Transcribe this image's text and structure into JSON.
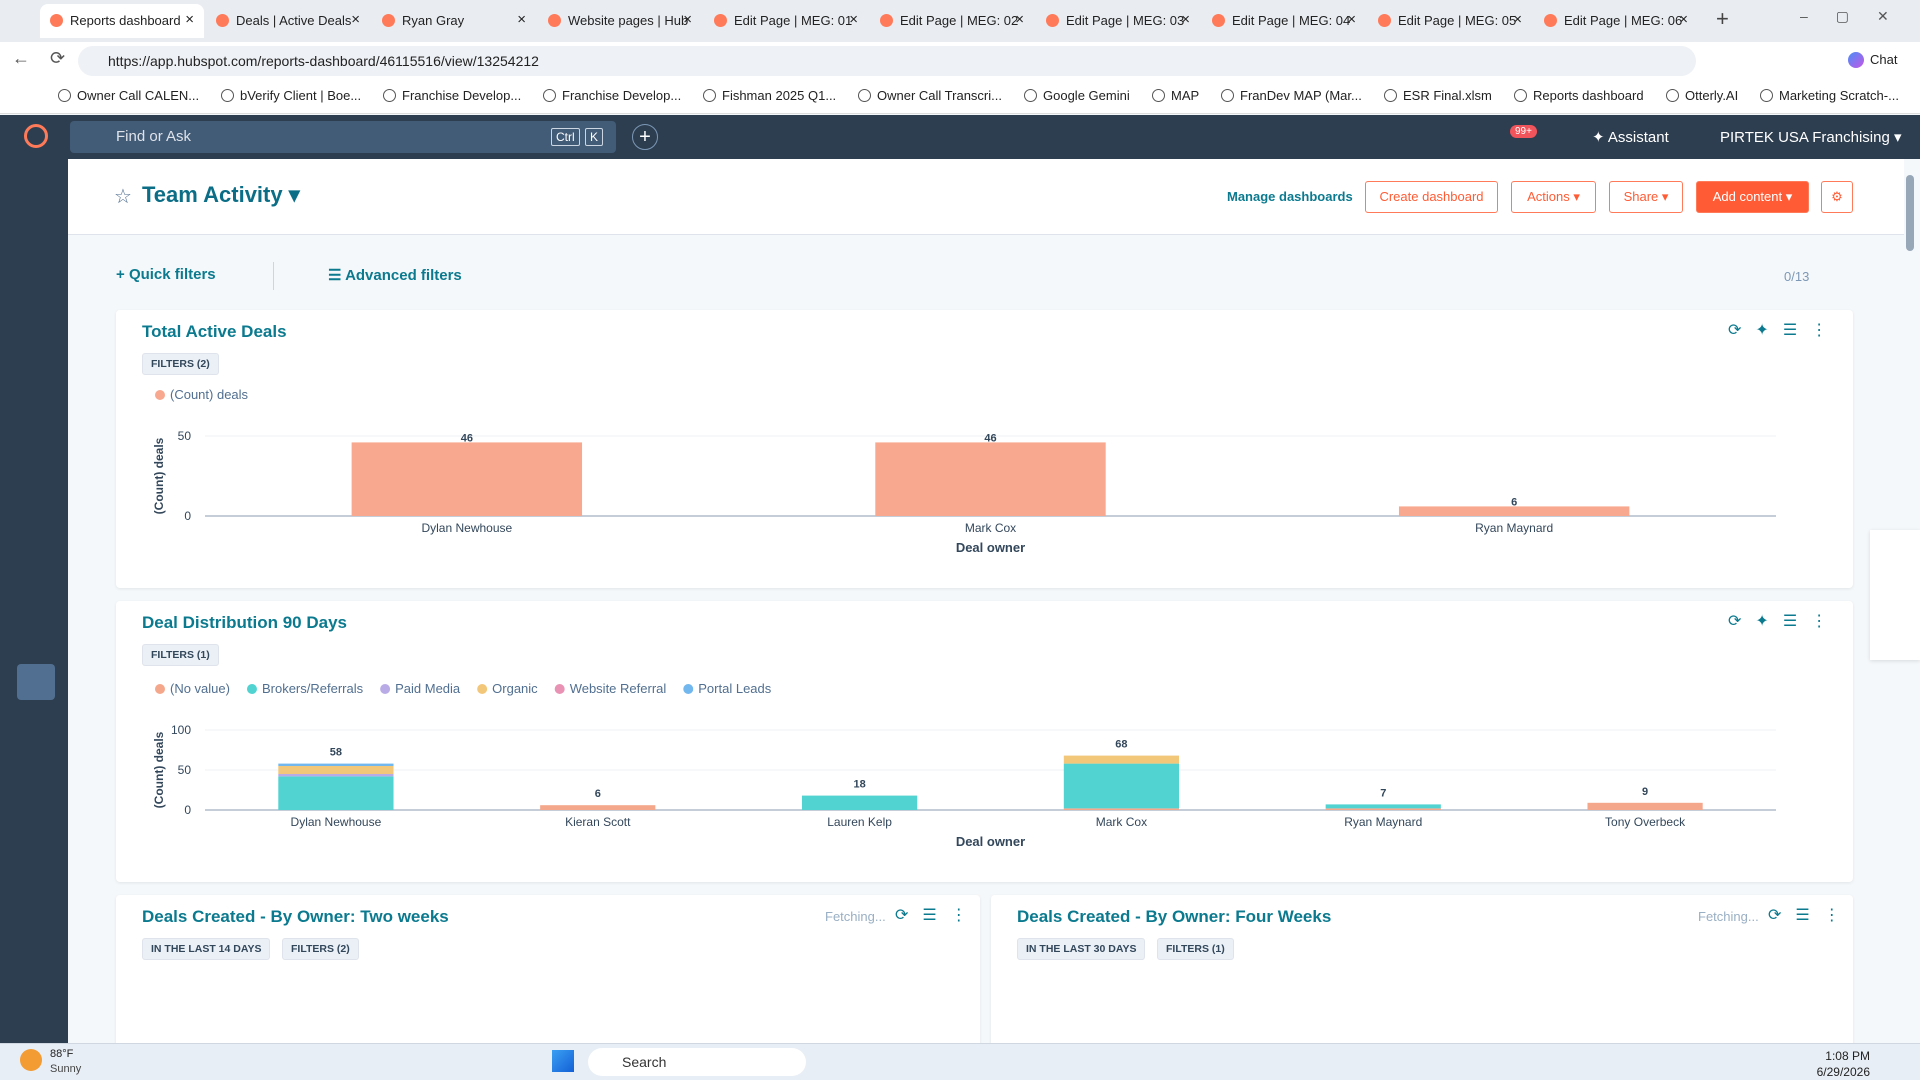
{
  "browser": {
    "tabs": [
      "Reports dashboard",
      "Deals | Active Deals",
      "Ryan Gray",
      "Website pages | Hub",
      "Edit Page | MEG: 01",
      "Edit Page | MEG: 02",
      "Edit Page | MEG: 03",
      "Edit Page | MEG: 04",
      "Edit Page | MEG: 05",
      "Edit Page | MEG: 06"
    ],
    "url": "https://app.hubspot.com/reports-dashboard/46115516/view/13254212",
    "chat": "Chat",
    "bookmarks": [
      "Owner Call CALEN...",
      "bVerify Client | Boe...",
      "Franchise Develop...",
      "Franchise Develop...",
      "Fishman 2025 Q1...",
      "Owner Call Transcri...",
      "Google Gemini",
      "MAP",
      "FranDev MAP (Mar...",
      "ESR Final.xlsm",
      "Reports dashboard",
      "Otterly.AI",
      "Marketing Scratch-..."
    ]
  },
  "app": {
    "search": "Find or Ask",
    "shortcut": [
      "Ctrl",
      "K"
    ],
    "notifications": "99+",
    "assistant": "Assistant",
    "account": "PIRTEK USA Franchising"
  },
  "dashboard": {
    "title": "Team Activity",
    "manage": "Manage dashboards",
    "buttons": [
      "Create dashboard",
      "Actions",
      "Share"
    ],
    "add": "Add content",
    "quick_filters": "Quick filters",
    "advanced_filters": "Advanced filters",
    "count": "0/13"
  },
  "reports": [
    {
      "title": "Total Active Deals",
      "tags": [
        "FILTERS (2)"
      ]
    },
    {
      "title": "Deal Distribution 90 Days",
      "tags": [
        "FILTERS (1)"
      ]
    },
    {
      "title": "Deals Created - By Owner: Two weeks",
      "tags": [
        "IN THE LAST 14 DAYS",
        "FILTERS (2)"
      ],
      "status": "Fetching..."
    },
    {
      "title": "Deals Created - By Owner: Four Weeks",
      "tags": [
        "IN THE LAST 30 DAYS",
        "FILTERS (1)"
      ],
      "status": "Fetching..."
    }
  ],
  "chart_data": [
    {
      "type": "bar",
      "stacked": false,
      "x_label": "Deal owner",
      "y_label": "(Count) deals",
      "categories": [
        "Dylan Newhouse",
        "Mark Cox",
        "Ryan Maynard"
      ],
      "series": [
        {
          "name": "(Count) deals",
          "color": "#f8a88e",
          "values": [
            46,
            46,
            6
          ]
        }
      ],
      "ylim": [
        0,
        50
      ],
      "yticks": [
        0,
        50
      ],
      "grid": true
    },
    {
      "type": "bar",
      "stacked": true,
      "x_label": "Deal owner",
      "y_label": "(Count) deals",
      "categories": [
        "Dylan Newhouse",
        "Kieran Scott",
        "Lauren Kelp",
        "Mark Cox",
        "Ryan Maynard",
        "Tony Overbeck"
      ],
      "series": [
        {
          "name": "(No value)",
          "color": "#f5a78c",
          "values": [
            0,
            6,
            0,
            2,
            2,
            9
          ]
        },
        {
          "name": "Brokers/Referrals",
          "color": "#51d3d2",
          "values": [
            42,
            0,
            18,
            56,
            5,
            0
          ]
        },
        {
          "name": "Paid Media",
          "color": "#b9ace6",
          "values": [
            3,
            0,
            0,
            0,
            0,
            0
          ]
        },
        {
          "name": "Organic",
          "color": "#f3c77a",
          "values": [
            10,
            0,
            0,
            10,
            0,
            0
          ]
        },
        {
          "name": "Website Referral",
          "color": "#ea92b3",
          "values": [
            0,
            0,
            0,
            0,
            0,
            0
          ]
        },
        {
          "name": "Portal Leads",
          "color": "#72b7ee",
          "values": [
            3,
            0,
            0,
            0,
            0,
            0
          ]
        }
      ],
      "totals": [
        58,
        6,
        18,
        68,
        7,
        9
      ],
      "ylim": [
        0,
        100
      ],
      "yticks": [
        0,
        50,
        100
      ],
      "grid": true
    }
  ],
  "taskbar": {
    "temp": "88°F",
    "weather": "Sunny",
    "search": "Search",
    "time": "1:08 PM",
    "date": "6/29/2026"
  }
}
